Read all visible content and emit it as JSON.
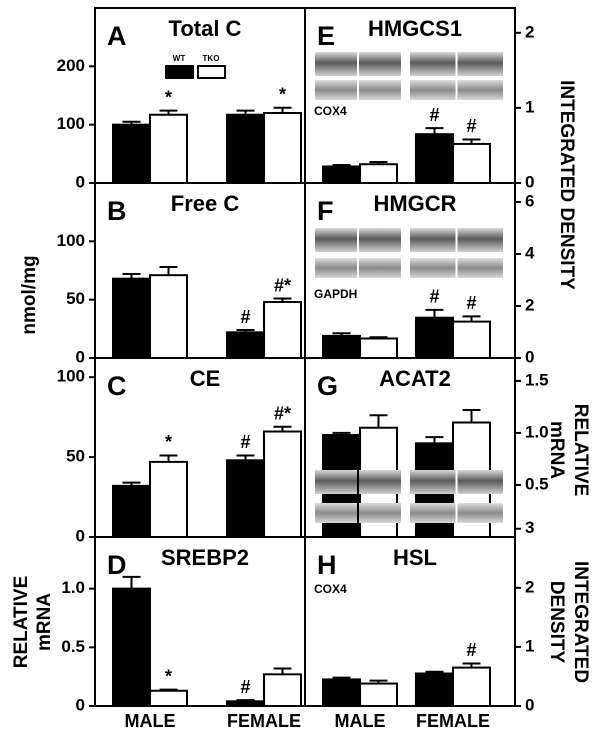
{
  "chart_data": [
    {
      "type": "bar",
      "panel": "A",
      "title": "Total C",
      "legend": true,
      "categories": [
        null,
        null
      ],
      "ylim": [
        0,
        300
      ],
      "yticks": [
        0,
        100,
        200
      ],
      "series": [
        {
          "name": "WT",
          "color": "#000000",
          "values": [
            100,
            117
          ],
          "errors": [
            5,
            7
          ],
          "markers": [
            null,
            null
          ]
        },
        {
          "name": "TKO",
          "color": "#ffffff",
          "values": [
            117,
            120
          ],
          "errors": [
            7,
            9
          ],
          "markers": [
            "*",
            "*"
          ]
        }
      ]
    },
    {
      "type": "bar",
      "panel": "B",
      "title": "Free C",
      "ylabel": [
        "nmol/mg"
      ],
      "categories": [
        null,
        null
      ],
      "ylim": [
        0,
        150
      ],
      "yticks": [
        0,
        50,
        100
      ],
      "series": [
        {
          "name": "WT",
          "color": "#000000",
          "values": [
            68,
            22
          ],
          "errors": [
            4,
            2
          ],
          "markers": [
            null,
            "#"
          ]
        },
        {
          "name": "TKO",
          "color": "#ffffff",
          "values": [
            71,
            48
          ],
          "errors": [
            7,
            3
          ],
          "markers": [
            null,
            "#*"
          ]
        }
      ]
    },
    {
      "type": "bar",
      "panel": "C",
      "title": "CE",
      "categories": [
        null,
        null
      ],
      "ylim": [
        0,
        112
      ],
      "yticks": [
        0,
        50,
        100
      ],
      "series": [
        {
          "name": "WT",
          "color": "#000000",
          "values": [
            32,
            48
          ],
          "errors": [
            2,
            3
          ],
          "markers": [
            null,
            "#"
          ]
        },
        {
          "name": "TKO",
          "color": "#ffffff",
          "values": [
            47,
            66
          ],
          "errors": [
            4,
            3
          ],
          "markers": [
            "*",
            "#*"
          ]
        }
      ]
    },
    {
      "type": "bar",
      "panel": "D",
      "title": "SREBP2",
      "ylabel": [
        "RELATIVE",
        "mRNA"
      ],
      "categories": [
        "MALE",
        "FEMALE"
      ],
      "ylim": [
        0,
        1.44
      ],
      "yticks": [
        0,
        0.5,
        {
          "value": 1,
          "label": "1.0"
        }
      ],
      "series": [
        {
          "name": "WT",
          "color": "#000000",
          "values": [
            1.0,
            0.04
          ],
          "errors": [
            0.1,
            0.01
          ],
          "markers": [
            null,
            "#"
          ]
        },
        {
          "name": "TKO",
          "color": "#ffffff",
          "values": [
            0.13,
            0.27
          ],
          "errors": [
            0.01,
            0.05
          ],
          "markers": [
            "*",
            null
          ]
        }
      ]
    },
    {
      "type": "bar",
      "panel": "E",
      "title": "HMGCS1",
      "ylabel": [
        "INTEGRATED DENSITY"
      ],
      "blot_label": "COX4",
      "categories": [
        null,
        null
      ],
      "ylim": [
        0,
        2.33
      ],
      "yticks": [
        0,
        1,
        2
      ],
      "series": [
        {
          "name": "WT",
          "color": "#000000",
          "values": [
            0.22,
            0.65
          ],
          "errors": [
            0.02,
            0.08
          ],
          "markers": [
            null,
            "#"
          ]
        },
        {
          "name": "TKO",
          "color": "#ffffff",
          "values": [
            0.25,
            0.52
          ],
          "errors": [
            0.03,
            0.06
          ],
          "markers": [
            null,
            "#"
          ]
        }
      ]
    },
    {
      "type": "bar",
      "panel": "F",
      "title": "HMGCR",
      "blot_label": "GAPDH",
      "categories": [
        null,
        null
      ],
      "ylim": [
        0,
        6.73
      ],
      "yticks": [
        0,
        2,
        4,
        6
      ],
      "series": [
        {
          "name": "WT",
          "color": "#000000",
          "values": [
            0.85,
            1.55
          ],
          "errors": [
            0.1,
            0.3
          ],
          "markers": [
            null,
            "#"
          ]
        },
        {
          "name": "TKO",
          "color": "#ffffff",
          "values": [
            0.75,
            1.4
          ],
          "errors": [
            0.05,
            0.2
          ],
          "markers": [
            null,
            "#"
          ]
        }
      ]
    },
    {
      "type": "bar",
      "panel": "G",
      "title": "ACAT2",
      "ylabel": [
        "RELATIVE",
        "mRNA"
      ],
      "categories": [
        null,
        null
      ],
      "ylim": [
        0,
        1.72
      ],
      "yticks": [
        0.5,
        {
          "value": 1,
          "label": "1.0"
        },
        1.5
      ],
      "series": [
        {
          "name": "WT",
          "color": "#000000",
          "values": [
            0.98,
            0.9
          ],
          "errors": [
            0.02,
            0.06
          ],
          "markers": [
            null,
            null
          ]
        },
        {
          "name": "TKO",
          "color": "#ffffff",
          "values": [
            1.05,
            1.1
          ],
          "errors": [
            0.12,
            0.12
          ],
          "markers": [
            null,
            null
          ]
        }
      ]
    },
    {
      "type": "bar",
      "panel": "H",
      "title": "HSL",
      "ylabel": [
        "INTEGRATED",
        "DENSITY"
      ],
      "blot_label": "COX4",
      "categories": [
        "MALE",
        "FEMALE"
      ],
      "ylim": [
        0,
        2.86
      ],
      "yticks": [
        0,
        1,
        2,
        3
      ],
      "series": [
        {
          "name": "WT",
          "color": "#000000",
          "values": [
            0.45,
            0.55
          ],
          "errors": [
            0.03,
            0.03
          ],
          "markers": [
            null,
            null
          ]
        },
        {
          "name": "TKO",
          "color": "#ffffff",
          "values": [
            0.38,
            0.65
          ],
          "errors": [
            0.05,
            0.07
          ],
          "markers": [
            null,
            "#"
          ]
        }
      ]
    }
  ]
}
